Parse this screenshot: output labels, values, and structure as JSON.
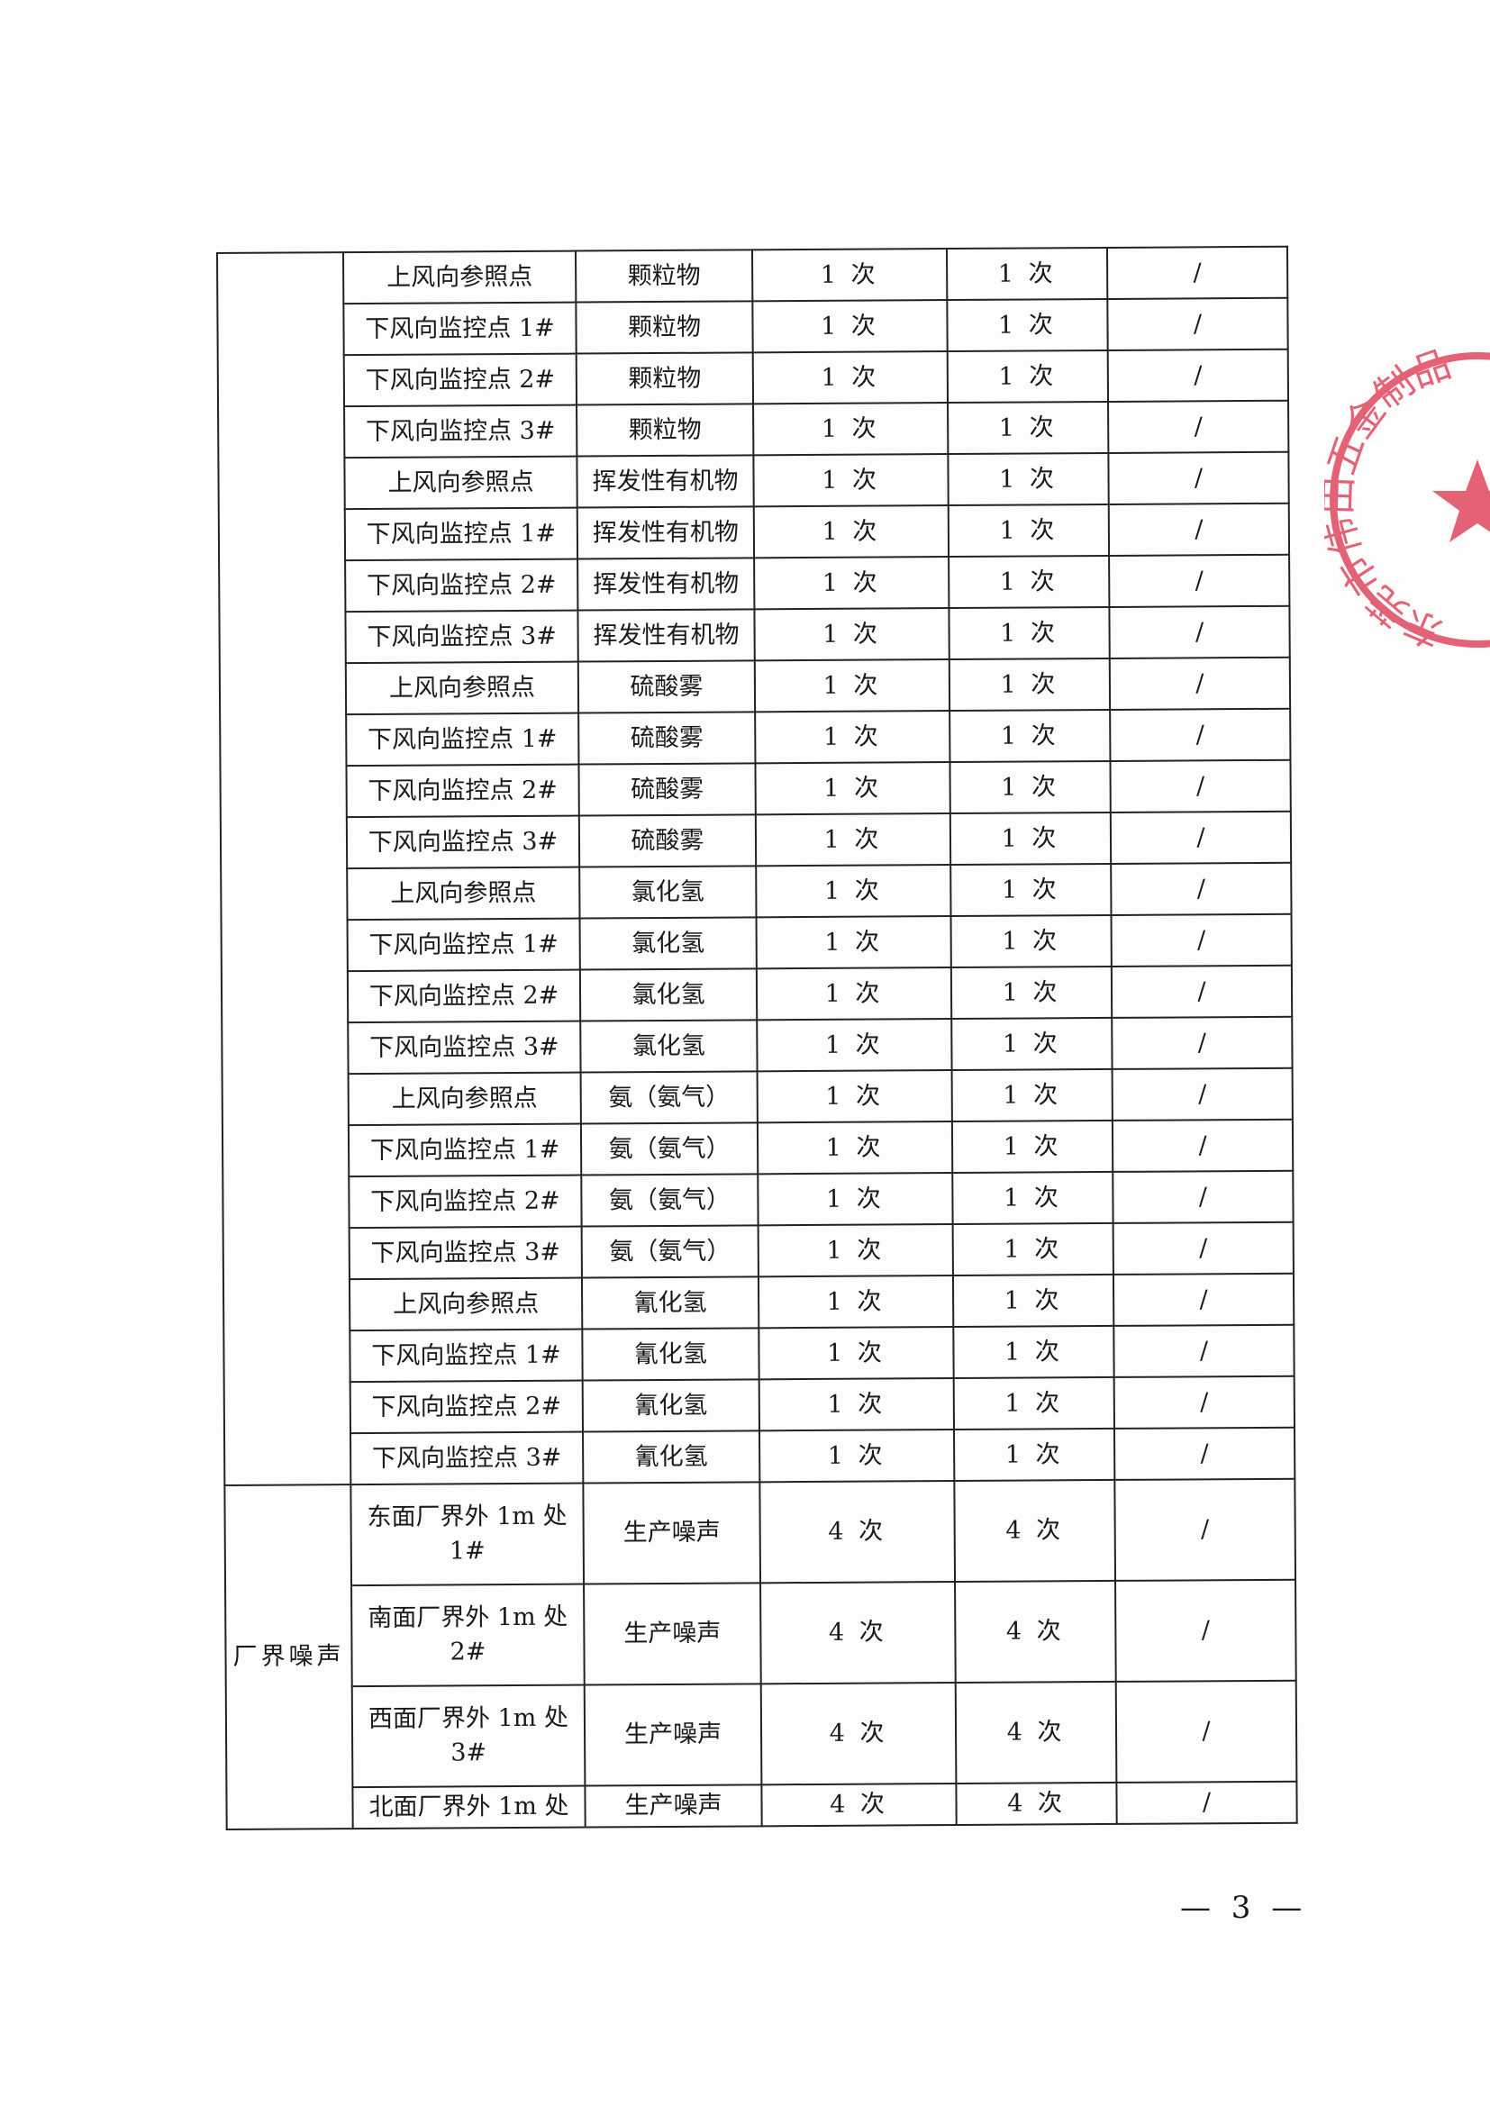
{
  "table": {
    "air_rows": [
      {
        "point": "上风向参照点",
        "item": "颗粒物",
        "freq_a": "1 次",
        "freq_b": "1 次",
        "note": "/"
      },
      {
        "point": "下风向监控点 1#",
        "item": "颗粒物",
        "freq_a": "1 次",
        "freq_b": "1 次",
        "note": "/"
      },
      {
        "point": "下风向监控点 2#",
        "item": "颗粒物",
        "freq_a": "1 次",
        "freq_b": "1 次",
        "note": "/"
      },
      {
        "point": "下风向监控点 3#",
        "item": "颗粒物",
        "freq_a": "1 次",
        "freq_b": "1 次",
        "note": "/"
      },
      {
        "point": "上风向参照点",
        "item": "挥发性有机物",
        "freq_a": "1 次",
        "freq_b": "1 次",
        "note": "/"
      },
      {
        "point": "下风向监控点 1#",
        "item": "挥发性有机物",
        "freq_a": "1 次",
        "freq_b": "1 次",
        "note": "/"
      },
      {
        "point": "下风向监控点 2#",
        "item": "挥发性有机物",
        "freq_a": "1 次",
        "freq_b": "1 次",
        "note": "/"
      },
      {
        "point": "下风向监控点 3#",
        "item": "挥发性有机物",
        "freq_a": "1 次",
        "freq_b": "1 次",
        "note": "/"
      },
      {
        "point": "上风向参照点",
        "item": "硫酸雾",
        "freq_a": "1 次",
        "freq_b": "1 次",
        "note": "/"
      },
      {
        "point": "下风向监控点 1#",
        "item": "硫酸雾",
        "freq_a": "1 次",
        "freq_b": "1 次",
        "note": "/"
      },
      {
        "point": "下风向监控点 2#",
        "item": "硫酸雾",
        "freq_a": "1 次",
        "freq_b": "1 次",
        "note": "/"
      },
      {
        "point": "下风向监控点 3#",
        "item": "硫酸雾",
        "freq_a": "1 次",
        "freq_b": "1 次",
        "note": "/"
      },
      {
        "point": "上风向参照点",
        "item": "氯化氢",
        "freq_a": "1 次",
        "freq_b": "1 次",
        "note": "/"
      },
      {
        "point": "下风向监控点 1#",
        "item": "氯化氢",
        "freq_a": "1 次",
        "freq_b": "1 次",
        "note": "/"
      },
      {
        "point": "下风向监控点 2#",
        "item": "氯化氢",
        "freq_a": "1 次",
        "freq_b": "1 次",
        "note": "/"
      },
      {
        "point": "下风向监控点 3#",
        "item": "氯化氢",
        "freq_a": "1 次",
        "freq_b": "1 次",
        "note": "/"
      },
      {
        "point": "上风向参照点",
        "item": "氨（氨气）",
        "freq_a": "1 次",
        "freq_b": "1 次",
        "note": "/"
      },
      {
        "point": "下风向监控点 1#",
        "item": "氨（氨气）",
        "freq_a": "1 次",
        "freq_b": "1 次",
        "note": "/"
      },
      {
        "point": "下风向监控点 2#",
        "item": "氨（氨气）",
        "freq_a": "1 次",
        "freq_b": "1 次",
        "note": "/"
      },
      {
        "point": "下风向监控点 3#",
        "item": "氨（氨气）",
        "freq_a": "1 次",
        "freq_b": "1 次",
        "note": "/"
      },
      {
        "point": "上风向参照点",
        "item": "氰化氢",
        "freq_a": "1 次",
        "freq_b": "1 次",
        "note": "/"
      },
      {
        "point": "下风向监控点 1#",
        "item": "氰化氢",
        "freq_a": "1 次",
        "freq_b": "1 次",
        "note": "/"
      },
      {
        "point": "下风向监控点 2#",
        "item": "氰化氢",
        "freq_a": "1 次",
        "freq_b": "1 次",
        "note": "/"
      },
      {
        "point": "下风向监控点 3#",
        "item": "氰化氢",
        "freq_a": "1 次",
        "freq_b": "1 次",
        "note": "/"
      }
    ],
    "noise_category": "厂界噪声",
    "noise_rows": [
      {
        "point": "东面厂界外 1m 处 1#",
        "item": "生产噪声",
        "freq_a": "4 次",
        "freq_b": "4 次",
        "note": "/"
      },
      {
        "point": "南面厂界外 1m 处 2#",
        "item": "生产噪声",
        "freq_a": "4 次",
        "freq_b": "4 次",
        "note": "/"
      },
      {
        "point": "西面厂界外 1m 处 3#",
        "item": "生产噪声",
        "freq_a": "4 次",
        "freq_b": "4 次",
        "note": "/"
      },
      {
        "point": "北面厂界外 1m 处",
        "item": "生产噪声",
        "freq_a": "4 次",
        "freq_b": "4 次",
        "note": "/"
      }
    ]
  },
  "page_number": "— 3 —",
  "stamp": {
    "text": "东莞市伟田五金制品",
    "color": "#e0485e"
  }
}
